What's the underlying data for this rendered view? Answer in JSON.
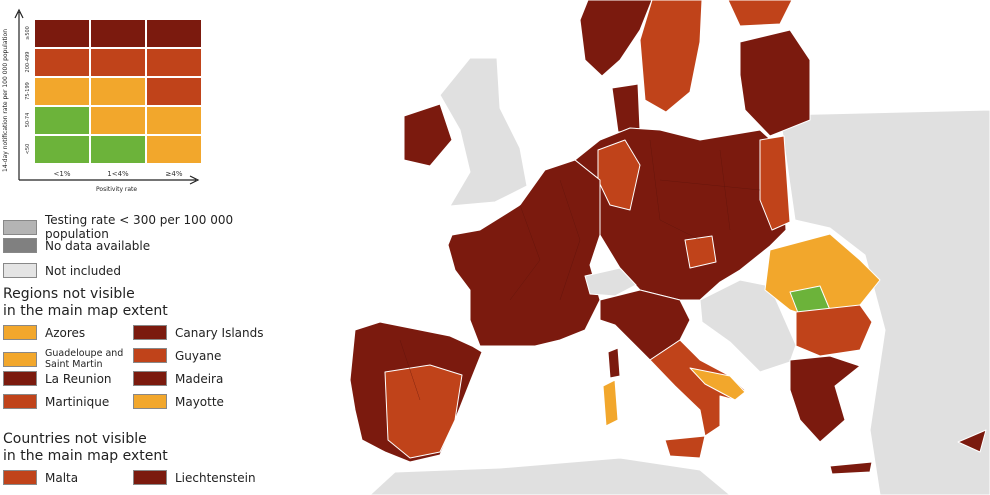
{
  "legend_matrix": {
    "y_axis_label": "14-day notification rate per 100 000 population",
    "x_axis_label": "Positivity rate",
    "row_labels": [
      "≥500",
      "200-499",
      "75-199",
      "50-74",
      "<50"
    ],
    "column_labels": [
      "<1%",
      "1<4%",
      "≥4%"
    ],
    "cells": [
      [
        "#7b1a0e",
        "#7b1a0e",
        "#7b1a0e"
      ],
      [
        "#c0431a",
        "#c0431a",
        "#c0431a"
      ],
      [
        "#f2a72c",
        "#f2a72c",
        "#c0431a"
      ],
      [
        "#6cb33a",
        "#f2a72c",
        "#f2a72c"
      ],
      [
        "#6cb33a",
        "#6cb33a",
        "#f2a72c"
      ]
    ]
  },
  "status_legend": [
    {
      "label": "Testing rate < 300 per 100 000 population",
      "color": "#b4b4b4"
    },
    {
      "label": "No data available",
      "color": "#808080"
    },
    {
      "label": "Not included",
      "color": "#e4e4e4"
    }
  ],
  "regions_section": {
    "title": "Regions not visible\nin the main map extent",
    "items": [
      {
        "label": "Azores",
        "color": "#f2a72c"
      },
      {
        "label": "Guadeloupe and Saint Martin",
        "color": "#f2a72c"
      },
      {
        "label": "La Reunion",
        "color": "#7b1a0e"
      },
      {
        "label": "Martinique",
        "color": "#c0431a"
      },
      {
        "label": "Canary Islands",
        "color": "#7b1a0e"
      },
      {
        "label": "Guyane",
        "color": "#c0431a"
      },
      {
        "label": "Madeira",
        "color": "#7b1a0e"
      },
      {
        "label": "Mayotte",
        "color": "#f2a72c"
      }
    ]
  },
  "countries_section": {
    "title": "Countries not visible\nin the main map extent",
    "items": [
      {
        "label": "Malta",
        "color": "#c0431a"
      },
      {
        "label": "Liechtenstein",
        "color": "#7b1a0e"
      }
    ]
  }
}
